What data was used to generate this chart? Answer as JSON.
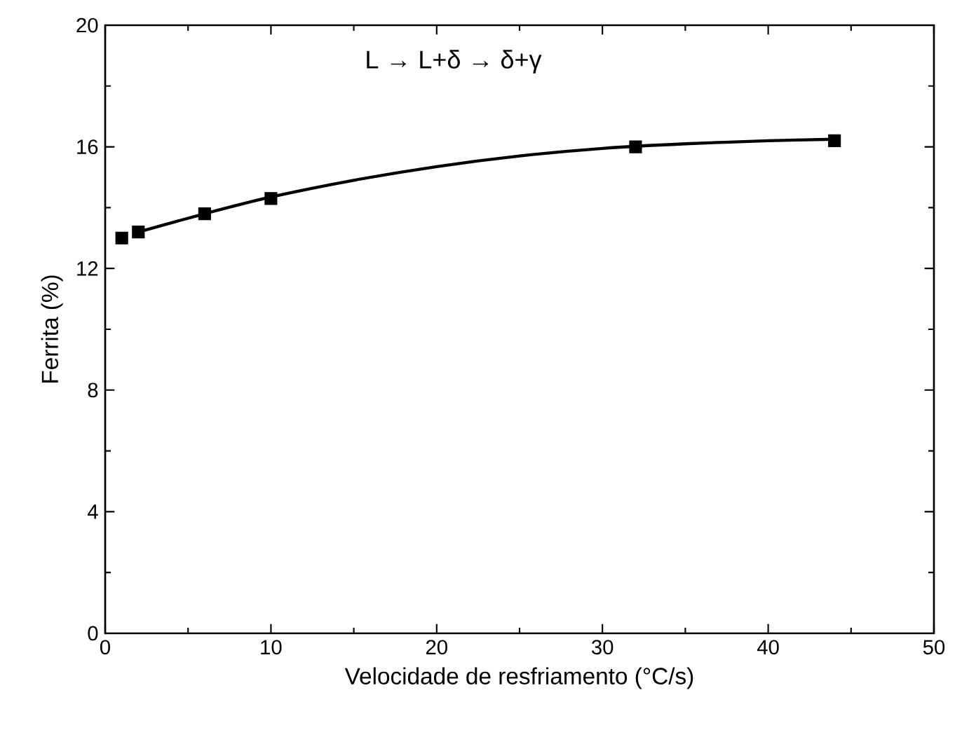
{
  "chart_data": {
    "type": "scatter",
    "xlabel": "Velocidade de resfriamento (°C/s)",
    "ylabel": "Ferrita (%)",
    "annotations": [
      "L → L+δ → δ+γ"
    ],
    "xlim": [
      0,
      50
    ],
    "xticks": [
      0,
      10,
      20,
      30,
      40,
      50
    ],
    "ylim": [
      0,
      20
    ],
    "yticks": [
      0,
      4,
      8,
      12,
      16,
      20
    ],
    "series": [
      {
        "marker": "square",
        "color": "#000000",
        "x": [
          1,
          2,
          6,
          10,
          32,
          44
        ],
        "values": [
          13.0,
          13.2,
          13.8,
          14.3,
          16.0,
          16.2
        ]
      },
      {
        "type": "line",
        "marker": "none",
        "line_style": "solid",
        "color": "#000000",
        "x": [
          2,
          6,
          10,
          15,
          20,
          25,
          30,
          35,
          40,
          44
        ],
        "values": [
          13.2,
          13.8,
          14.35,
          14.9,
          15.35,
          15.7,
          15.95,
          16.1,
          16.2,
          16.25
        ]
      }
    ]
  }
}
